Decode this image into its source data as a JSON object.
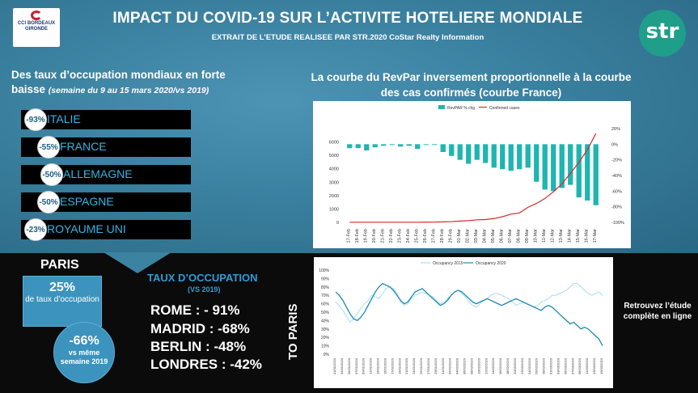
{
  "header": {
    "title": "IMPACT DU COVID-19 SUR L’ACTIVITE HOTELIERE MONDIALE",
    "subtitle": "EXTRAIT DE L’ETUDE REALISEE PAR STR.2020 CoStar Realty Information",
    "logo_left_line1": "CCI BORDEAUX",
    "logo_left_line2": "GIRONDE",
    "logo_right": "str"
  },
  "left_panel": {
    "heading": "Des taux d’occupation mondiaux en forte baisse",
    "heading_note": "(semaine du 9 au 15 mars 2020/vs 2019)",
    "countries": [
      {
        "name": "ITALIE",
        "pct": "-93%"
      },
      {
        "name": "FRANCE",
        "pct": "-55%"
      },
      {
        "name": "ALLEMAGNE",
        "pct": "-50%"
      },
      {
        "name": "ESPAGNE",
        "pct": "-50%"
      },
      {
        "name": "ROYAUME UNI",
        "pct": "-23%"
      }
    ]
  },
  "right_panel": {
    "heading": "La courbe du RevPar inversement proportionnelle à la courbe des cas confirmés (courbe France)"
  },
  "paris": {
    "title": "PARIS",
    "occupancy_value": "25%",
    "occupancy_label": "de taux d’occupation",
    "change_value": "-66%",
    "change_label": "vs même semaine 2019"
  },
  "taux": {
    "title": "TAUX D’OCCUPATION",
    "subtitle": "(VS 2019)",
    "cities": [
      "ROME : - 91%",
      "MADRID : -68%",
      "BERLIN : -48%",
      "LONDRES : -42%"
    ]
  },
  "to_paris": "TO PARIS",
  "retrouvez": "Retrouvez l’étude complète en ligne",
  "colors": {
    "teal": "#1fb5b0",
    "red": "#d42b2b",
    "occ2019": "#a6dcef",
    "occ2020": "#1a8ab5"
  },
  "chart_data": [
    {
      "type": "bar",
      "legend": [
        "RevPAR % chg",
        "Confirmed cases"
      ],
      "categories": [
        "17-Feb",
        "18-Feb",
        "19-Feb",
        "20-Feb",
        "21-Feb",
        "22-Feb",
        "23-Feb",
        "24-Feb",
        "25-Feb",
        "26-Feb",
        "27-Feb",
        "28-Feb",
        "29-Feb",
        "01-Mar",
        "02-Mar",
        "03-Mar",
        "04-Mar",
        "05-Mar",
        "06-Mar",
        "07-Mar",
        "08-Mar",
        "09-Mar",
        "10-Mar",
        "11-Mar",
        "12-Mar",
        "13-Mar",
        "14-Mar",
        "15-Mar",
        "16-Mar",
        "17-Mar"
      ],
      "series": [
        {
          "name": "RevPAR % chg",
          "axis": "right",
          "values": [
            -5,
            -5,
            -8,
            -4,
            -2,
            -1,
            -3,
            -2,
            -6,
            -1,
            -1,
            -10,
            -15,
            -20,
            -25,
            -20,
            -24,
            -30,
            -32,
            -34,
            -32,
            -30,
            -48,
            -58,
            -60,
            -56,
            -52,
            -68,
            -72,
            -78
          ]
        },
        {
          "name": "Confirmed cases",
          "axis": "left",
          "values": [
            12,
            12,
            12,
            12,
            12,
            12,
            12,
            12,
            12,
            14,
            18,
            38,
            57,
            100,
            130,
            191,
            212,
            285,
            423,
            613,
            706,
            1126,
            1412,
            1784,
            2281,
            2876,
            3661,
            4469,
            5423,
            6633
          ]
        }
      ],
      "y_left": {
        "ylim": [
          0,
          7000
        ],
        "ticks": [
          0,
          1000,
          2000,
          3000,
          4000,
          5000,
          6000
        ]
      },
      "y_right": {
        "ylim": [
          -100,
          20
        ],
        "ticks": [
          "20%",
          "0%",
          "-20%",
          "-40%",
          "-60%",
          "-80%",
          "-100%"
        ]
      }
    },
    {
      "type": "line",
      "legend": [
        "Occupancy 2019",
        "Occupancy 2020"
      ],
      "x_first": "01/01/2020",
      "x_last": "15/03/2020",
      "x_tick_labels": [
        "01/01/2020",
        "03/01/2020",
        "05/01/2020",
        "07/01/2020",
        "09/01/2020",
        "11/01/2020",
        "13/01/2020",
        "15/01/2020",
        "17/01/2020",
        "19/01/2020",
        "21/01/2020",
        "23/01/2020",
        "25/01/2020",
        "27/01/2020",
        "29/01/2020",
        "31/01/2020",
        "02/02/2020",
        "04/02/2020",
        "06/02/2020",
        "08/02/2020",
        "10/02/2020",
        "12/02/2020",
        "14/02/2020",
        "16/02/2020",
        "18/02/2020",
        "20/02/2020",
        "22/02/2020",
        "24/02/2020",
        "26/02/2020",
        "28/02/2020",
        "01/03/2020",
        "03/03/2020",
        "05/03/2020",
        "07/03/2020",
        "09/03/2020",
        "11/03/2020",
        "13/03/2020",
        "15/03/2020"
      ],
      "ylim": [
        0,
        100
      ],
      "y_ticks": [
        "0%",
        "10%",
        "20%",
        "30%",
        "40%",
        "50%",
        "60%",
        "70%",
        "80%",
        "90%",
        "100%"
      ],
      "series": [
        {
          "name": "Occupancy 2019",
          "values": [
            62,
            58,
            52,
            45,
            38,
            42,
            48,
            55,
            60,
            64,
            70,
            68,
            66,
            72,
            78,
            80,
            78,
            72,
            62,
            58,
            60,
            66,
            70,
            72,
            74,
            72,
            70,
            68,
            64,
            60,
            62,
            66,
            70,
            74,
            76,
            72,
            68,
            62,
            58,
            56,
            60,
            64,
            66,
            70,
            72,
            72,
            70,
            68,
            66,
            62,
            58,
            60,
            62,
            60,
            58,
            56,
            58,
            62,
            64,
            66,
            70,
            70,
            72,
            74,
            76,
            80,
            84,
            84,
            80,
            76,
            72,
            70,
            72,
            74,
            70
          ]
        },
        {
          "name": "Occupancy 2020",
          "values": [
            74,
            70,
            64,
            56,
            48,
            42,
            40,
            44,
            50,
            58,
            66,
            74,
            80,
            84,
            82,
            80,
            76,
            70,
            64,
            60,
            62,
            68,
            74,
            76,
            78,
            74,
            70,
            66,
            62,
            58,
            60,
            64,
            70,
            74,
            76,
            74,
            70,
            66,
            62,
            60,
            62,
            64,
            66,
            64,
            62,
            60,
            58,
            60,
            62,
            64,
            66,
            64,
            62,
            60,
            58,
            56,
            54,
            52,
            56,
            58,
            56,
            52,
            48,
            44,
            40,
            36,
            38,
            34,
            30,
            32,
            30,
            26,
            22,
            18,
            10
          ]
        }
      ]
    }
  ]
}
